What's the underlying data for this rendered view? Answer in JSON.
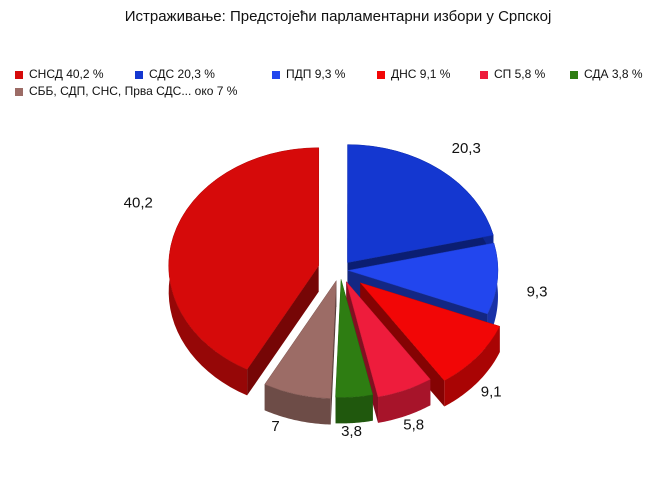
{
  "chart_data": {
    "type": "pie3d",
    "title": "Истраживање: Предстојећи парламентарни избори у Српској",
    "categories": [
      "СНСД 40,2 %",
      "СДС 20,3 %",
      "ПДП 9,3 %",
      "ДНС 9,1 %",
      "СП 5,8 %",
      "СДА 3,8 %",
      "СББ, СДП, СНС, Прва СДС... око 7 %"
    ],
    "values": [
      40.2,
      20.3,
      9.3,
      9.1,
      5.8,
      3.8,
      7
    ],
    "value_labels": [
      "40,2",
      "20,3",
      "9,3",
      "9,1",
      "5,8",
      "3,8",
      "7"
    ],
    "colors": [
      "#d60a0a",
      "#1437d0",
      "#2246ee",
      "#f20606",
      "#ee1c3c",
      "#2e7d12",
      "#9c6c66"
    ]
  }
}
